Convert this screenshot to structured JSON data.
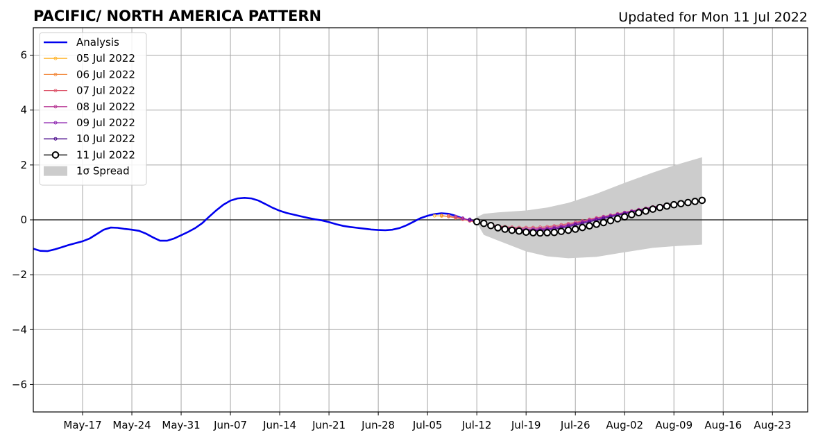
{
  "titles": {
    "left": "PACIFIC/ NORTH AMERICA PATTERN",
    "right": "Updated for Mon 11 Jul 2022"
  },
  "chart_data": {
    "type": "line",
    "title": "PACIFIC/ NORTH AMERICA PATTERN",
    "subtitle": "Updated for Mon 11 Jul 2022",
    "xlabel": "",
    "ylabel": "",
    "x_range": [
      "2022-05-10",
      "2022-08-28"
    ],
    "ylim": [
      -7,
      7
    ],
    "y_ticks": [
      -6,
      -4,
      -2,
      0,
      2,
      4,
      6
    ],
    "y_tick_labels": [
      "−6",
      "−4",
      "−2",
      "0",
      "2",
      "4",
      "6"
    ],
    "x_ticks": [
      "2022-05-17",
      "2022-05-24",
      "2022-05-31",
      "2022-06-07",
      "2022-06-14",
      "2022-06-21",
      "2022-06-28",
      "2022-07-05",
      "2022-07-12",
      "2022-07-19",
      "2022-07-26",
      "2022-08-02",
      "2022-08-09",
      "2022-08-16",
      "2022-08-23"
    ],
    "x_tick_labels": [
      "May-17",
      "May-24",
      "May-31",
      "Jun-07",
      "Jun-14",
      "Jun-21",
      "Jun-28",
      "Jul-05",
      "Jul-12",
      "Jul-19",
      "Jul-26",
      "Aug-02",
      "Aug-09",
      "Aug-16",
      "Aug-23"
    ],
    "grid": true,
    "zero_line": true,
    "legend_position": "upper-left",
    "series": [
      {
        "name": "Analysis",
        "color": "#0000ee",
        "kind": "analysis",
        "points": [
          [
            "2022-05-10",
            -1.05
          ],
          [
            "2022-05-11",
            -1.13
          ],
          [
            "2022-05-12",
            -1.14
          ],
          [
            "2022-05-13",
            -1.08
          ],
          [
            "2022-05-14",
            -1.0
          ],
          [
            "2022-05-15",
            -0.92
          ],
          [
            "2022-05-16",
            -0.85
          ],
          [
            "2022-05-17",
            -0.78
          ],
          [
            "2022-05-18",
            -0.68
          ],
          [
            "2022-05-19",
            -0.52
          ],
          [
            "2022-05-20",
            -0.36
          ],
          [
            "2022-05-21",
            -0.28
          ],
          [
            "2022-05-22",
            -0.29
          ],
          [
            "2022-05-23",
            -0.33
          ],
          [
            "2022-05-24",
            -0.36
          ],
          [
            "2022-05-25",
            -0.4
          ],
          [
            "2022-05-26",
            -0.5
          ],
          [
            "2022-05-27",
            -0.64
          ],
          [
            "2022-05-28",
            -0.76
          ],
          [
            "2022-05-29",
            -0.76
          ],
          [
            "2022-05-30",
            -0.68
          ],
          [
            "2022-05-31",
            -0.56
          ],
          [
            "2022-06-01",
            -0.44
          ],
          [
            "2022-06-02",
            -0.3
          ],
          [
            "2022-06-03",
            -0.12
          ],
          [
            "2022-06-04",
            0.12
          ],
          [
            "2022-06-05",
            0.35
          ],
          [
            "2022-06-06",
            0.55
          ],
          [
            "2022-06-07",
            0.7
          ],
          [
            "2022-06-08",
            0.78
          ],
          [
            "2022-06-09",
            0.8
          ],
          [
            "2022-06-10",
            0.78
          ],
          [
            "2022-06-11",
            0.7
          ],
          [
            "2022-06-12",
            0.57
          ],
          [
            "2022-06-13",
            0.44
          ],
          [
            "2022-06-14",
            0.33
          ],
          [
            "2022-06-15",
            0.25
          ],
          [
            "2022-06-16",
            0.19
          ],
          [
            "2022-06-17",
            0.13
          ],
          [
            "2022-06-18",
            0.07
          ],
          [
            "2022-06-19",
            0.02
          ],
          [
            "2022-06-20",
            -0.02
          ],
          [
            "2022-06-21",
            -0.08
          ],
          [
            "2022-06-22",
            -0.16
          ],
          [
            "2022-06-23",
            -0.22
          ],
          [
            "2022-06-24",
            -0.26
          ],
          [
            "2022-06-25",
            -0.29
          ],
          [
            "2022-06-26",
            -0.32
          ],
          [
            "2022-06-27",
            -0.35
          ],
          [
            "2022-06-28",
            -0.37
          ],
          [
            "2022-06-29",
            -0.38
          ],
          [
            "2022-06-30",
            -0.36
          ],
          [
            "2022-07-01",
            -0.3
          ],
          [
            "2022-07-02",
            -0.2
          ],
          [
            "2022-07-03",
            -0.07
          ],
          [
            "2022-07-04",
            0.06
          ],
          [
            "2022-07-05",
            0.15
          ],
          [
            "2022-07-06",
            0.21
          ],
          [
            "2022-07-07",
            0.24
          ],
          [
            "2022-07-08",
            0.22
          ],
          [
            "2022-07-09",
            0.15
          ],
          [
            "2022-07-10",
            0.05
          ]
        ]
      },
      {
        "name": "05 Jul 2022",
        "color": "#ffb733",
        "kind": "forecast",
        "points": [
          [
            "2022-07-06",
            0.15
          ],
          [
            "2022-07-07",
            0.14
          ],
          [
            "2022-07-08",
            0.12
          ],
          [
            "2022-07-09",
            0.08
          ],
          [
            "2022-07-10",
            0.03
          ],
          [
            "2022-07-11",
            -0.02
          ],
          [
            "2022-07-12",
            -0.08
          ],
          [
            "2022-07-13",
            -0.13
          ]
        ]
      },
      {
        "name": "06 Jul 2022",
        "color": "#f28a3f",
        "kind": "forecast",
        "points": [
          [
            "2022-07-07",
            0.16
          ],
          [
            "2022-07-08",
            0.12
          ],
          [
            "2022-07-09",
            0.07
          ],
          [
            "2022-07-10",
            0.02
          ],
          [
            "2022-07-11",
            -0.04
          ],
          [
            "2022-07-12",
            -0.1
          ],
          [
            "2022-07-13",
            -0.15
          ],
          [
            "2022-07-14",
            -0.2
          ]
        ]
      },
      {
        "name": "07 Jul 2022",
        "color": "#de5a6f",
        "kind": "forecast",
        "points": [
          [
            "2022-07-08",
            0.15
          ],
          [
            "2022-07-09",
            0.09
          ],
          [
            "2022-07-10",
            0.03
          ],
          [
            "2022-07-11",
            -0.03
          ],
          [
            "2022-07-12",
            -0.08
          ],
          [
            "2022-07-13",
            -0.13
          ],
          [
            "2022-07-14",
            -0.18
          ],
          [
            "2022-07-15",
            -0.22
          ],
          [
            "2022-07-16",
            -0.25
          ],
          [
            "2022-07-17",
            -0.27
          ],
          [
            "2022-07-18",
            -0.28
          ],
          [
            "2022-07-19",
            -0.28
          ],
          [
            "2022-07-20",
            -0.28
          ],
          [
            "2022-07-21",
            -0.27
          ],
          [
            "2022-07-22",
            -0.25
          ],
          [
            "2022-07-23",
            -0.22
          ],
          [
            "2022-07-24",
            -0.18
          ],
          [
            "2022-07-25",
            -0.14
          ],
          [
            "2022-07-26",
            -0.09
          ],
          [
            "2022-07-27",
            -0.04
          ],
          [
            "2022-07-28",
            0.02
          ],
          [
            "2022-07-29",
            0.07
          ],
          [
            "2022-07-30",
            0.12
          ],
          [
            "2022-07-31",
            0.17
          ],
          [
            "2022-08-01",
            0.22
          ],
          [
            "2022-08-02",
            0.27
          ],
          [
            "2022-08-03",
            0.32
          ],
          [
            "2022-08-04",
            0.37
          ],
          [
            "2022-08-05",
            0.42
          ],
          [
            "2022-08-06",
            0.47
          ],
          [
            "2022-08-07",
            0.51
          ],
          [
            "2022-08-08",
            0.55
          ],
          [
            "2022-08-09",
            0.59
          ]
        ]
      },
      {
        "name": "08 Jul 2022",
        "color": "#b83a96",
        "kind": "forecast",
        "points": [
          [
            "2022-07-09",
            0.12
          ],
          [
            "2022-07-10",
            0.05
          ],
          [
            "2022-07-11",
            -0.02
          ],
          [
            "2022-07-12",
            -0.08
          ],
          [
            "2022-07-13",
            -0.14
          ],
          [
            "2022-07-14",
            -0.19
          ],
          [
            "2022-07-15",
            -0.24
          ],
          [
            "2022-07-16",
            -0.28
          ],
          [
            "2022-07-17",
            -0.3
          ],
          [
            "2022-07-18",
            -0.32
          ],
          [
            "2022-07-19",
            -0.33
          ],
          [
            "2022-07-20",
            -0.33
          ],
          [
            "2022-07-21",
            -0.32
          ],
          [
            "2022-07-22",
            -0.3
          ],
          [
            "2022-07-23",
            -0.27
          ],
          [
            "2022-07-24",
            -0.23
          ],
          [
            "2022-07-25",
            -0.18
          ],
          [
            "2022-07-26",
            -0.13
          ],
          [
            "2022-07-27",
            -0.07
          ],
          [
            "2022-07-28",
            -0.01
          ],
          [
            "2022-07-29",
            0.05
          ],
          [
            "2022-07-30",
            0.11
          ],
          [
            "2022-07-31",
            0.16
          ],
          [
            "2022-08-01",
            0.21
          ],
          [
            "2022-08-02",
            0.27
          ],
          [
            "2022-08-03",
            0.32
          ],
          [
            "2022-08-04",
            0.37
          ],
          [
            "2022-08-05",
            0.42
          ],
          [
            "2022-08-06",
            0.47
          ],
          [
            "2022-08-07",
            0.51
          ],
          [
            "2022-08-08",
            0.55
          ],
          [
            "2022-08-09",
            0.59
          ],
          [
            "2022-08-10",
            0.63
          ]
        ]
      },
      {
        "name": "09 Jul 2022",
        "color": "#8a1fae",
        "kind": "forecast",
        "points": [
          [
            "2022-07-10",
            0.06
          ],
          [
            "2022-07-11",
            -0.01
          ],
          [
            "2022-07-12",
            -0.08
          ],
          [
            "2022-07-13",
            -0.15
          ],
          [
            "2022-07-14",
            -0.21
          ],
          [
            "2022-07-15",
            -0.26
          ],
          [
            "2022-07-16",
            -0.3
          ],
          [
            "2022-07-17",
            -0.33
          ],
          [
            "2022-07-18",
            -0.35
          ],
          [
            "2022-07-19",
            -0.36
          ],
          [
            "2022-07-20",
            -0.36
          ],
          [
            "2022-07-21",
            -0.35
          ],
          [
            "2022-07-22",
            -0.33
          ],
          [
            "2022-07-23",
            -0.3
          ],
          [
            "2022-07-24",
            -0.26
          ],
          [
            "2022-07-25",
            -0.21
          ],
          [
            "2022-07-26",
            -0.15
          ],
          [
            "2022-07-27",
            -0.09
          ],
          [
            "2022-07-28",
            -0.03
          ],
          [
            "2022-07-29",
            0.03
          ],
          [
            "2022-07-30",
            0.09
          ],
          [
            "2022-07-31",
            0.14
          ],
          [
            "2022-08-01",
            0.2
          ],
          [
            "2022-08-02",
            0.25
          ],
          [
            "2022-08-03",
            0.3
          ],
          [
            "2022-08-04",
            0.35
          ],
          [
            "2022-08-05",
            0.4
          ],
          [
            "2022-08-06",
            0.45
          ],
          [
            "2022-08-07",
            0.49
          ],
          [
            "2022-08-08",
            0.53
          ],
          [
            "2022-08-09",
            0.57
          ],
          [
            "2022-08-10",
            0.61
          ],
          [
            "2022-08-11",
            0.65
          ]
        ]
      },
      {
        "name": "10 Jul 2022",
        "color": "#4b0c8c",
        "kind": "forecast",
        "points": [
          [
            "2022-07-11",
            0.02
          ],
          [
            "2022-07-12",
            -0.06
          ],
          [
            "2022-07-13",
            -0.14
          ],
          [
            "2022-07-14",
            -0.21
          ],
          [
            "2022-07-15",
            -0.27
          ],
          [
            "2022-07-16",
            -0.32
          ],
          [
            "2022-07-17",
            -0.36
          ],
          [
            "2022-07-18",
            -0.38
          ],
          [
            "2022-07-19",
            -0.4
          ],
          [
            "2022-07-20",
            -0.4
          ],
          [
            "2022-07-21",
            -0.39
          ],
          [
            "2022-07-22",
            -0.37
          ],
          [
            "2022-07-23",
            -0.34
          ],
          [
            "2022-07-24",
            -0.3
          ],
          [
            "2022-07-25",
            -0.25
          ],
          [
            "2022-07-26",
            -0.19
          ],
          [
            "2022-07-27",
            -0.13
          ],
          [
            "2022-07-28",
            -0.07
          ],
          [
            "2022-07-29",
            -0.01
          ],
          [
            "2022-07-30",
            0.05
          ],
          [
            "2022-07-31",
            0.11
          ],
          [
            "2022-08-01",
            0.17
          ],
          [
            "2022-08-02",
            0.22
          ],
          [
            "2022-08-03",
            0.28
          ],
          [
            "2022-08-04",
            0.33
          ],
          [
            "2022-08-05",
            0.38
          ],
          [
            "2022-08-06",
            0.43
          ],
          [
            "2022-08-07",
            0.47
          ],
          [
            "2022-08-08",
            0.51
          ],
          [
            "2022-08-09",
            0.55
          ],
          [
            "2022-08-10",
            0.59
          ],
          [
            "2022-08-11",
            0.63
          ],
          [
            "2022-08-12",
            0.67
          ]
        ]
      },
      {
        "name": "11 Jul 2022",
        "color": "#000000",
        "kind": "current",
        "points": [
          [
            "2022-07-12",
            -0.07
          ],
          [
            "2022-07-13",
            -0.13
          ],
          [
            "2022-07-14",
            -0.21
          ],
          [
            "2022-07-15",
            -0.29
          ],
          [
            "2022-07-16",
            -0.34
          ],
          [
            "2022-07-17",
            -0.38
          ],
          [
            "2022-07-18",
            -0.41
          ],
          [
            "2022-07-19",
            -0.45
          ],
          [
            "2022-07-20",
            -0.47
          ],
          [
            "2022-07-21",
            -0.48
          ],
          [
            "2022-07-22",
            -0.47
          ],
          [
            "2022-07-23",
            -0.46
          ],
          [
            "2022-07-24",
            -0.42
          ],
          [
            "2022-07-25",
            -0.38
          ],
          [
            "2022-07-26",
            -0.34
          ],
          [
            "2022-07-27",
            -0.28
          ],
          [
            "2022-07-28",
            -0.22
          ],
          [
            "2022-07-29",
            -0.16
          ],
          [
            "2022-07-30",
            -0.1
          ],
          [
            "2022-07-31",
            -0.03
          ],
          [
            "2022-08-01",
            0.04
          ],
          [
            "2022-08-02",
            0.11
          ],
          [
            "2022-08-03",
            0.19
          ],
          [
            "2022-08-04",
            0.26
          ],
          [
            "2022-08-05",
            0.32
          ],
          [
            "2022-08-06",
            0.39
          ],
          [
            "2022-08-07",
            0.45
          ],
          [
            "2022-08-08",
            0.5
          ],
          [
            "2022-08-09",
            0.55
          ],
          [
            "2022-08-10",
            0.59
          ],
          [
            "2022-08-11",
            0.63
          ],
          [
            "2022-08-12",
            0.67
          ],
          [
            "2022-08-13",
            0.71
          ]
        ]
      }
    ],
    "spread": {
      "name": "1σ Spread",
      "color": "#cccccc",
      "points": [
        [
          "2022-07-12",
          -0.1,
          0.1
        ],
        [
          "2022-07-13",
          -0.55,
          0.22
        ],
        [
          "2022-07-15",
          -0.75,
          0.27
        ],
        [
          "2022-07-19",
          -1.15,
          0.34
        ],
        [
          "2022-07-22",
          -1.33,
          0.45
        ],
        [
          "2022-07-25",
          -1.4,
          0.62
        ],
        [
          "2022-07-29",
          -1.35,
          0.95
        ],
        [
          "2022-08-02",
          -1.18,
          1.35
        ],
        [
          "2022-08-06",
          -1.02,
          1.72
        ],
        [
          "2022-08-09",
          -0.96,
          1.98
        ],
        [
          "2022-08-13",
          -0.9,
          2.28
        ]
      ]
    }
  }
}
